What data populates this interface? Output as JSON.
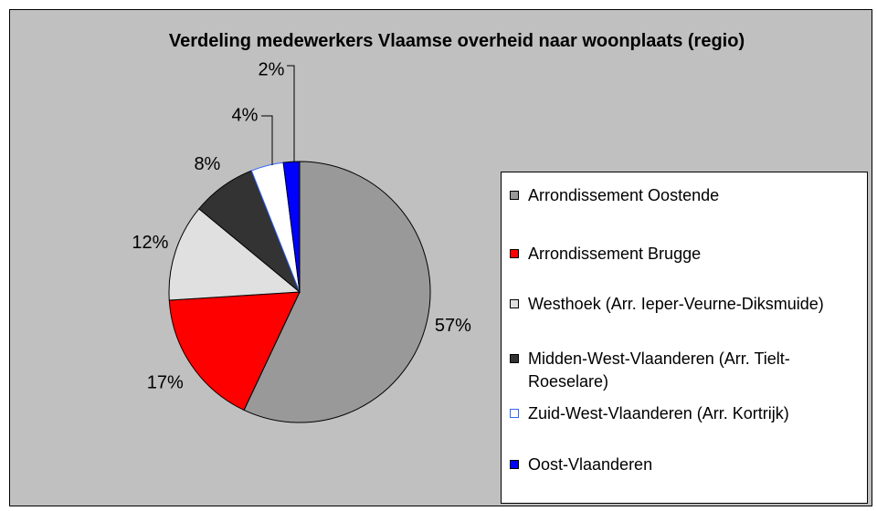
{
  "chart_data": {
    "type": "pie",
    "title": "Verdeling medewerkers Vlaamse overheid naar woonplaats (regio)",
    "categories": [
      "Arrondissement Oostende",
      "Arrondissement Brugge",
      "Westhoek (Arr. Ieper-Veurne-Diksmuide)",
      "Midden-West-Vlaanderen (Arr. Tielt-Roeselare)",
      "Zuid-West-Vlaanderen (Arr. Kortrijk)",
      "Oost-Vlaanderen"
    ],
    "values": [
      57,
      17,
      12,
      8,
      4,
      2
    ],
    "value_labels": [
      "57%",
      "17%",
      "12%",
      "8%",
      "4%",
      "2%"
    ],
    "colors": [
      "#999999",
      "#ff0000",
      "#e0e0e0",
      "#333333",
      "#ffffff",
      "#0000ff"
    ],
    "edgecolors": [
      "#000000",
      "#000000",
      "#000000",
      "#000000",
      "#3366ff",
      "#000000"
    ],
    "legend": "right"
  }
}
